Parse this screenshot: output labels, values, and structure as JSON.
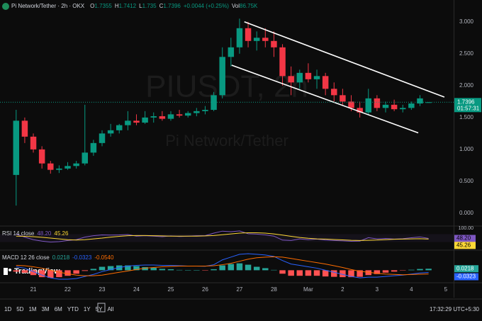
{
  "header": {
    "symbol": "Pi Network/Tether · 2h · OKX",
    "ohlc_keys": [
      "O",
      "H",
      "L",
      "C"
    ],
    "change": "+0.0044 (+0.25%)",
    "volume_key": "Vol",
    "volume": "86.75K",
    "countdown": "01:57:31"
  },
  "logo": "TradingView",
  "toolbar": {
    "ranges": [
      "1D",
      "5D",
      "1M",
      "3M",
      "6M",
      "YTD",
      "1Y",
      "5Y",
      "All"
    ],
    "clock": "17:32:29 UTC+5:30"
  },
  "chart_data": [
    {
      "type": "candlestick",
      "watermark": [
        "PIUSDT, 2h",
        "Pi Network/Tether"
      ],
      "x": [
        -0.5,
        -0.25,
        0,
        0.25,
        0.5,
        0.75,
        1,
        1.25,
        1.5,
        1.75,
        2,
        2.25,
        2.5,
        2.75,
        3,
        3.25,
        3.5,
        3.75,
        4,
        4.25,
        4.5,
        4.75,
        5,
        5.25,
        5.5,
        5.75,
        6,
        6.25,
        6.5,
        6.75,
        7,
        7.25,
        7.5,
        7.75,
        8,
        8.25,
        8.5,
        8.75,
        9,
        9.25,
        9.5,
        9.75,
        10,
        10.25,
        10.5,
        10.75,
        11,
        11.25,
        11.5
      ],
      "open": [
        0.6,
        1.45,
        1.2,
        1.0,
        0.78,
        0.68,
        0.7,
        0.74,
        0.78,
        0.95,
        1.1,
        1.25,
        1.3,
        1.38,
        1.45,
        1.42,
        1.5,
        1.52,
        1.48,
        1.55,
        1.53,
        1.57,
        1.6,
        1.62,
        1.85,
        2.45,
        2.6,
        2.9,
        2.7,
        2.75,
        2.7,
        2.6,
        2.15,
        2.05,
        2.2,
        2.1,
        2.15,
        1.95,
        1.85,
        1.75,
        1.65,
        1.58,
        1.8,
        1.65,
        1.7,
        1.63,
        1.65,
        1.72,
        1.7355
      ],
      "high": [
        1.62,
        1.5,
        1.25,
        1.05,
        0.82,
        0.75,
        0.8,
        0.82,
        1.7,
        1.15,
        1.3,
        1.4,
        1.4,
        1.6,
        1.55,
        1.6,
        1.58,
        1.6,
        1.6,
        1.62,
        1.6,
        1.65,
        1.68,
        1.9,
        2.6,
        2.75,
        3.05,
        3.0,
        2.85,
        2.9,
        2.85,
        2.65,
        2.3,
        2.25,
        2.35,
        2.25,
        2.2,
        2.05,
        1.95,
        1.85,
        1.75,
        1.95,
        1.85,
        1.75,
        1.78,
        1.7,
        1.75,
        1.85,
        1.7412
      ],
      "low": [
        0.12,
        1.1,
        0.95,
        0.7,
        0.62,
        0.63,
        0.68,
        0.7,
        0.75,
        0.9,
        1.05,
        1.2,
        1.25,
        1.3,
        1.38,
        1.4,
        1.42,
        1.45,
        1.45,
        1.5,
        1.5,
        1.52,
        1.55,
        1.6,
        1.8,
        2.3,
        2.5,
        2.6,
        2.55,
        2.6,
        2.45,
        2.0,
        1.85,
        1.95,
        2.05,
        1.95,
        1.85,
        1.75,
        1.7,
        1.6,
        1.5,
        1.55,
        1.6,
        1.58,
        1.6,
        1.58,
        1.62,
        1.68,
        1.735
      ],
      "close": [
        1.45,
        1.2,
        1.0,
        0.78,
        0.68,
        0.7,
        0.74,
        0.78,
        0.95,
        1.1,
        1.25,
        1.3,
        1.38,
        1.45,
        1.42,
        1.5,
        1.52,
        1.48,
        1.55,
        1.53,
        1.57,
        1.6,
        1.62,
        1.85,
        2.45,
        2.6,
        2.9,
        2.7,
        2.75,
        2.7,
        2.6,
        2.15,
        2.05,
        2.2,
        2.1,
        2.15,
        1.95,
        1.85,
        1.75,
        1.65,
        1.58,
        1.8,
        1.65,
        1.7,
        1.63,
        1.65,
        1.72,
        1.8,
        1.7396
      ],
      "colors": {
        "up": "#089981",
        "down": "#f23645"
      },
      "xlim": [
        -0.97,
        12.23
      ],
      "xticks": [
        {
          "value": 0,
          "label": "21"
        },
        {
          "value": 1,
          "label": "22"
        },
        {
          "value": 2,
          "label": "23"
        },
        {
          "value": 3,
          "label": "24"
        },
        {
          "value": 4,
          "label": "25"
        },
        {
          "value": 5,
          "label": "26"
        },
        {
          "value": 6,
          "label": "27"
        },
        {
          "value": 7,
          "label": "28"
        },
        {
          "value": 8,
          "label": "Mar"
        },
        {
          "value": 9,
          "label": "2"
        },
        {
          "value": 10,
          "label": "3"
        },
        {
          "value": 11,
          "label": "4"
        },
        {
          "value": 12,
          "label": "5"
        }
      ],
      "ylim": [
        -0.19,
        3.12
      ],
      "yticks": [
        {
          "value": 0,
          "label": "0.000"
        },
        {
          "value": 0.5,
          "label": "0.500"
        },
        {
          "value": 1,
          "label": "1.000"
        },
        {
          "value": 1.5,
          "label": "1.500"
        },
        {
          "value": 2,
          "label": "2.000"
        },
        {
          "value": 2.5,
          "label": "2.500"
        },
        {
          "value": 3,
          "label": "3.000"
        }
      ],
      "grid": false,
      "trend_lines": [
        {
          "color": "#ffffff",
          "x": [
            6.14,
            11.96
          ],
          "y": [
            3.0,
            1.82
          ]
        },
        {
          "color": "#ffffff",
          "x": [
            5.77,
            11.2
          ],
          "y": [
            2.32,
            1.26
          ]
        }
      ]
    },
    {
      "type": "line",
      "title": "RSI 14 close",
      "legend_values": [
        "48.20",
        "45.26"
      ],
      "series": [
        {
          "color": "#7e57c2",
          "values": [
            70,
            55,
            42,
            35,
            30,
            32,
            38,
            42,
            55,
            62,
            66,
            65,
            66,
            68,
            60,
            62,
            60,
            57,
            61,
            58,
            60,
            62,
            62,
            75,
            85,
            82,
            86,
            72,
            70,
            66,
            60,
            40,
            38,
            46,
            42,
            45,
            40,
            38,
            36,
            34,
            35,
            52,
            46,
            48,
            45,
            47,
            52,
            56,
            48.2
          ]
        },
        {
          "color": "#fdd835",
          "values": [
            60,
            59,
            57,
            54,
            50,
            46,
            42,
            40,
            42,
            46,
            50,
            55,
            59,
            62,
            63,
            63,
            62,
            61,
            60,
            60,
            60,
            60,
            61,
            63,
            67,
            71,
            75,
            77,
            77,
            75,
            71,
            65,
            59,
            53,
            49,
            46,
            45,
            43,
            41,
            39,
            38,
            39,
            40,
            42,
            44,
            45,
            46,
            47,
            45.26
          ]
        }
      ],
      "ylim": [
        0,
        100
      ],
      "yticks": [
        {
          "value": 100,
          "label": "100.00"
        }
      ],
      "band": [
        30,
        70
      ]
    },
    {
      "type": "macd",
      "title": "MACD 12 26 close",
      "legend_values": [
        "0.0218",
        "-0.0323",
        "-0.0540"
      ],
      "histogram": {
        "colors": {
          "up": "#26a69a",
          "down": "#ff5252"
        },
        "values": [
          -0.02,
          -0.035,
          -0.07,
          -0.1,
          -0.11,
          -0.1,
          -0.08,
          -0.05,
          -0.01,
          0.02,
          0.05,
          0.06,
          0.07,
          0.07,
          0.06,
          0.045,
          0.035,
          0.02,
          0.015,
          0.005,
          0,
          0,
          -0.002,
          0.015,
          0.07,
          0.09,
          0.1,
          0.08,
          0.05,
          0.03,
          0.005,
          -0.05,
          -0.08,
          -0.08,
          -0.08,
          -0.08,
          -0.09,
          -0.095,
          -0.1,
          -0.1,
          -0.095,
          -0.07,
          -0.055,
          -0.035,
          -0.02,
          -0.005,
          0.007,
          0.018,
          0.0218
        ]
      },
      "series": [
        {
          "color": "#2962ff",
          "values": [
            0.05,
            0.03,
            -0.02,
            -0.07,
            -0.11,
            -0.13,
            -0.13,
            -0.12,
            -0.09,
            -0.06,
            -0.02,
            0.01,
            0.04,
            0.06,
            0.07,
            0.075,
            0.075,
            0.07,
            0.07,
            0.065,
            0.06,
            0.06,
            0.058,
            0.08,
            0.15,
            0.19,
            0.23,
            0.24,
            0.23,
            0.22,
            0.2,
            0.14,
            0.09,
            0.07,
            0.05,
            0.03,
            0.0,
            -0.03,
            -0.06,
            -0.09,
            -0.11,
            -0.1,
            -0.1,
            -0.09,
            -0.08,
            -0.07,
            -0.055,
            -0.04,
            -0.0323
          ]
        },
        {
          "color": "#ff6d00",
          "values": [
            0.07,
            0.065,
            0.05,
            0.03,
            0.0,
            -0.03,
            -0.05,
            -0.07,
            -0.08,
            -0.08,
            -0.07,
            -0.05,
            -0.03,
            -0.01,
            0.01,
            0.03,
            0.04,
            0.05,
            0.055,
            0.06,
            0.06,
            0.06,
            0.06,
            0.065,
            0.08,
            0.1,
            0.13,
            0.16,
            0.18,
            0.19,
            0.195,
            0.19,
            0.17,
            0.15,
            0.13,
            0.11,
            0.09,
            0.065,
            0.04,
            0.01,
            -0.015,
            -0.03,
            -0.045,
            -0.055,
            -0.06,
            -0.065,
            -0.062,
            -0.058,
            -0.054
          ]
        }
      ],
      "ylim": [
        -0.15,
        0.26
      ]
    }
  ]
}
